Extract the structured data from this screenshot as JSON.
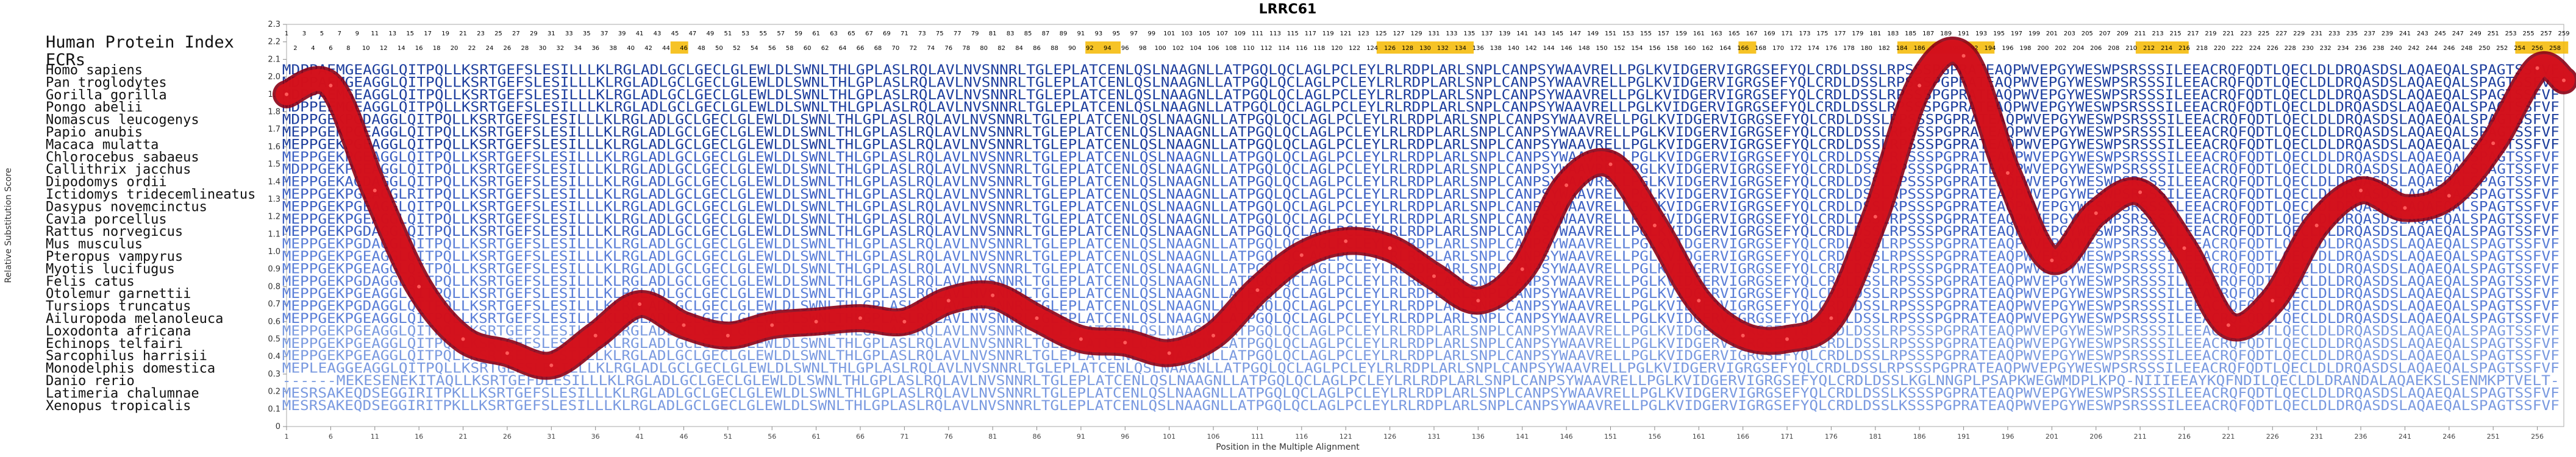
{
  "chart_data": {
    "type": "line",
    "title": "LRRC61",
    "xlabel": "Position in the Multiple Alignment",
    "ylabel": "Relative Substitution Score",
    "xlim": [
      1,
      259
    ],
    "ylim": [
      0,
      2.3
    ],
    "yticks": [
      "0",
      "0.1",
      "0.2",
      "0.3",
      "0.4",
      "0.5",
      "0.6",
      "0.7",
      "0.8",
      "0.9",
      "1.0",
      "1.1",
      "1.2",
      "1.3",
      "1.4",
      "1.5",
      "1.6",
      "1.7",
      "1.8",
      "1.9",
      "2.0",
      "2.1",
      "2.2",
      "2.3"
    ],
    "xticks": [
      1,
      6,
      11,
      16,
      21,
      26,
      31,
      36,
      41,
      46,
      51,
      56,
      61,
      66,
      71,
      76,
      81,
      86,
      91,
      96,
      101,
      106,
      111,
      116,
      121,
      126,
      131,
      136,
      141,
      146,
      151,
      156,
      161,
      166,
      171,
      176,
      181,
      186,
      191,
      196,
      201,
      206,
      211,
      216,
      221,
      226,
      231,
      236,
      241,
      246,
      251,
      256
    ],
    "row_labels": [
      "Human Protein Index",
      "ECRs"
    ],
    "ecr_highlights": [
      [
        45,
        46
      ],
      [
        92,
        95
      ],
      [
        125,
        135
      ],
      [
        166,
        167
      ],
      [
        184,
        194
      ],
      [
        211,
        216
      ],
      [
        254,
        259
      ]
    ],
    "species": [
      "Homo sapiens",
      "Pan troglodytes",
      "Gorilla gorilla",
      "Pongo abelii",
      "Nomascus leucogenys",
      "Papio anubis",
      "Macaca mulatta",
      "Chlorocebus sabaeus",
      "Callithrix jacchus",
      "Dipodomys ordii",
      "Ictidomys tridecemlineatus",
      "Dasypus novemcinctus",
      "Cavia porcellus",
      "Rattus norvegicus",
      "Mus musculus",
      "Pteropus vampyrus",
      "Myotis lucifugus",
      "Felis catus",
      "Otolemur garnettii",
      "Tursiops truncatus",
      "Ailuropoda melanoleuca",
      "Loxodonta africana",
      "Echinops telfairi",
      "Sarcophilus harrisii",
      "Monodelphis domestica",
      "Danio rerio",
      "Latimeria chalumnae",
      "Xenopus tropicalis"
    ],
    "sequences": [
      "MDPPAEMGEAGGLQITPQLLKSRTGEFSLESILLLKLRGLADLGCLGECLGLEWLDLSWNLTHLGPLASLRQLAVLNVSNNRLTGLEPLATCENLQSLNAAGNLLATPGQLQCLAGLPCLEYLRLRDPLARLSNPLCANPSYWAAVRELLPGLKVIDGERVIGRGSEFYQLCRDLDSSLRPSSSPGPRATEAQPWVEPGYWESWPSRSSSILEEACRQFQDTLQECLDLDRQASDSLAQAEQALSPAGTSSFVF",
      "MDPPAEMGEAGGLQITPQLLKSRTGEFSLESILLLKLRGLADLGCLGECLGLEWLDLSWNLTHLGPLASLRQLAVLNVSNNRLTGLEPLATCENLQSLNAAGNLLATPGQLQCLAGLPCLEYLRLRDPLARLSNPLCANPSYWAAVRELLPGLKVIDGERVIGRGSEFYQLCRDLDSSLRPSSSPGPRATEAQPWVEPGYWESWPSRSSSILEEACRQFQDTLQECLDLDRQASDSLAQAEQALSPAGTSSFVF",
      "MDPPAEMGEAGGLQITPQLLKSRTGEFSLESILLLKLRGLADLGCLGECLGLEWLDLSWNLTHLGPLASLRQLAVLNVSNNRLTGLEPLATCENLQSLNAAGNLLATPGQLQCLAGLPCLEYLRLRDPLARLSNPLCANPSYWAAVRELLPGLKVIDGERVIGRGSEFYQLCRDLDSSLRPSSSPGPRATEAQPWVEPGYWESWPSRSSSILEEACRQFQDTLQECLDLDRQASDSLAQAEQALSPAGTSSFVF",
      "MDPPEEMGEAGGLQITPQLLKSRTGEFSLESILLLKLRGLADLGCLGECLGLEWLDLSWNLTHLGPLASLRQLAVLNVSNNRLTGLEPLATCENLQSLNAAGNLLATPGQLQCLAGLPCLEYLRLRDPLARLSNPLCANPSYWAAVRELLPGLKVIDGERVIGRGSEFYQLCRDLDSSLRPSSSPGPRATEAQPWVEPGYWESWPSRSSSILEEACRQFQDTLQECLDLDRQASDSLAQAEQALSPAGTSSFVF",
      "MDPPGEKPGDAGGLQITPQLLKSRTGEFSLESILLLKLRGLADLGCLGECLGLEWLDLSWNLTHLGPLASLRQLAVLNVSNNRLTGLEPLATCENLQSLNAAGNLLATPGQLQCLAGLPCLEYLRLRDPLARLSNPLCANPSYWAAVRELLPGLKVIDGERVIGRGSEFYQLCRDLDSSLRPSSSPGPRATEAQPWVEPGYWESWPSRSSSILEEACRQFQDTLQECLDLDRQASDSLAQAEQALSPAGTSSFVF",
      "MEPPGEKPGEAGGLQITPQLLKSRTGEFSLESILLLKLRGLADLGCLGECLGLEWLDLSWNLTHLGPLASLRQLAVLNVSNNRLTGLEPLATCENLQSLNAAGNLLATPGQLQCLAGLPCLEYLRLRDPLARLSNPLCANPSYWAAVRELLPGLKVIDGERVIGRGSEFYQLCRDLDSSLRPSSSPGPRATEAQPWVEPGYWESWPSRSSSILEEACRQFQDTLQECLDLDRQASDSLAQAEQALSPAGTSSFVF",
      "MEPPGEKPGEAGGLQITPQLLKSRTGEFSLESILLLKLRGLADLGCLGECLGLEWLDLSWNLTHLGPLASLRQLAVLNVSNNRLTGLEPLATCENLQSLNAAGNLLATPGQLQCLAGLPCLEYLRLRDPLARLSNPLCANPSYWAAVRELLPGLKVIDGERVIGRGSEFYQLCRDLDSSLRPSSSPGPRATEAQPWVEPGYWESWPSRSSSILEEACRQFQDTLQECLDLDRQASDSLAQAEQALSPAGTSSFVF",
      "MEPPGEKPGEAGGLQITPQLLKSRTGEFSLESILLLKLRGLADLGCLGECLGLEWLDLSWNLTHLGPLASLRQLAVLNVSNNRLTGLEPLATCENLQSLNAAGNLLATPGQLQCLAGLPCLEYLRLRDPLARLSNPLCANPSYWAAVRELLPGLKVIDGERVIGRGSEFYQLCRDLDSSLRPSSSPGPRATEAQPWVEPGYWESWPSRSSSILEEACRQFQDTLQECLDLDRQASDSLAQAEQALSPAGTSSFVF",
      "MDPPGEKPGEAGGLQITPQLLKSRTGEFSLESILLLKLRGLADLGCLGECLGLEWLDLSWNLTHLGPLASLRQLAVLNVSNNRLTGLEPLATCENLQSLNAAGNLLATPGQLQCLAGLPCLEYLRLRDPLARLSNPLCANPSYWAAVRELLPGLKVIDGERVIGRGSEFYQLCRDLDSSLRPSSSPGPRATEAQPWVEPGYWESWPSRSSSILEEACRQFQDTLQECLDLDRQASDSLAQAEQALSPAGTSSFVF",
      "MEPPGEKAGDAGGLQITPQLLKSRTGEFSLESILLLKLRGLADLGCLGECLGLEWLDLSWNLTHLGPLASLRQLAVLNVSNNRLTGLEPLATCENLQSLNAAGNLLATPGQLQCLAGLPCLEYLRLRDPLARLSNPLCANPSYWAAVRELLPGLKVIDGERVIGRGSEFYQLCRDLDSSLRPSSSPGPRATEAQPWVEPGYWESWPSRSSSILEEACRQFQDTLQECLDLDRQASDSLAQAEQALSPAGTSSFVF",
      "MEPPGEKPGEAGGLRITPQLLKSRTGEFSLESILLLKLRGLADLGCLGECLGLEWLDLSWNLTHLGPLASLRQLAVLNVSNNRLTGLEPLATCENLQSLNAAGNLLATPGQLQCLAGLPCLEYLRLRDPLARLSNPLCANPSYWAAVRELLPGLKVIDGERVIGRGSEFYQLCRDLDSSLRPSSSPGPRATEAQPWVEPGYWESWPSRSSSILEEACRQFQDTLQECLDLDRQASDSLAQAEQALSPAGTSSFVF",
      "MEPPGEKPGEAGGLQITPQLLKSRTGEFSLESILLLKLRGLADLGCLGECLGLEWLDLSWNLTHLGPLASLRQLAVLNVSNNRLTGLEPLATCENLQSLNAAGNLLATPGQLQCLAGLPCLEYLRLRDPLARLSNPLCANPSYWAAVRELLPGLKVIDGERVIGRGSEFYQLCRDLDSSLRPSSSPGPRATEAQPWVEPGYWESWPSRSSSILEEACRQFQDTLQECLDLDRQASDSLAQAEQALSPAGTSSFVF",
      "MEPPGEKPGEAGGLQITPQLLKSRTGEFSLESILLLKLRGLADLGCLGECLGLEWLDLSWNLTHLGPLASLRQLAVLNVSNNRLTGLEPLATCENLQSLNAAGNLLATPGQLQCLAGLPCLEYLRLRDPLARLSNPLCANPSYWAAVRELLPGLKVIDGERVIGRGSEFYQLCRDLDSSLRPSSSPGPRATEAQPWVEPGYWESWPSRSSSILEEACRQFQDTLQECLDLDRQASDSLAQAEQALSPAGTSSFVF",
      "MEPPGEKPGDAGGLQITPQLLKSRTGEFSLESILLLKLRGLADLGCLGECLGLEWLDLSWNLTHLGPLASLRQLAVLNVSNNRLTGLEPLATCENLQSLNAAGNLLATPGQLQCLAGLPCLEYLRLRDPLARLSNPLCANPSYWAAVRELLPGLKVIDGERVIGRGSEFYQLCRDLDSSLRPSSSPGPRATEAQPWVEPGYWESWPSRSSSILEEACRQFQDTLQECLDLDRQASDSLAQAEQALSPAGTSSFVF",
      "MEPPGEKPGDAGGLQITPQLLKSRTGEFSLESILLLKLRGLADLGCLGECLGLEWLDLSWNLTHLGPLASLRQLAVLNVSNNRLTGLEPLATCENLQSLNAAGNLLATPGQLQCLAGLPCLEYLRLRDPLARLSNPLCANPSYWAAVRELLPGLKVIDGERVIGRGSEFYQLCRDLDSSLRPSSSPGPRATEAQPWVEPGYWESWPSRSSSILEEACRQFQDTLQECLDLDRQASDSLAQAEQALSPAGTSSFVF",
      "MEPPGEKPGEAGGLQITPQLLKSRTGEFSLESILLLKLRGLADLGCLGECLGLEWLDLSWNLTHLGPLASLRQLAVLNVSNNRLTGLEPLATCENLQSLNAAGNLLATPGQLQCLAGLPCLEYLRLRDPLARLSNPLCANPSYWAAVRELLPGLKVIDGERVIGRGSEFYQLCRDLDSSLRPSSSPGPRATEAQPWVEPGYWESWPSRSSSILEEACRQFQDTLQECLDLDRQASDSLAQAEQALSPAGTSSFVF",
      "MEPPGEKPGEAGGLQITPQLLKSRTGEFSLESILLLKLRGLADLGCLGECLGLEWLDLSWNLTHLGPLASLRQLAVLNVSNNRLTGLEPLATCENLQSLNAAGNLLATPGQLQCLAGLPCLEYLRLRDPLARLSNPLCANPSYWAAVRELLPGLKVIDGERVIGRGSEFYQLCRDLDSSLRPSSSPGPRATEAQPWVEPGYWESWPSRSSSILEEACRQFQDTLQECLDLDRQASDSLAQAEQALSPAGTSSFVF",
      "MEPPGEKPGDAGGLQITPQLLKSRTGEFSLESILLLKLRGLADLGCLGECLGLEWLDLSWNLTHLGPLASLRQLAVLNVSNNRLTGLEPLATCENLQSLNAAGNLLATPGQLQCLAGLPCLEYLRLRDPLARLSNPLCANPSYWAAVRELLPGLKVIDGERVIGRGSEFYQLCRDLDSSLRPSSSPGPRATEAQPWVEPGYWESWPSRSSSILEEACRQFQDTLQECLDLDRQASDSLAQAEQALSPAGTSSFVF",
      "MEPPGEKPGEAGGLQITPQLLKSRTGEFSLESILLLKLRGLADLGCLGECLGLEWLDLSWNLTHLGPLASLRQLAVLNVSNNRLTGLEPLATCENLQSLNAAGNLLATPGQLQCLAGLPCLEYLRLRDPLARLSNPLCANPSYWAAVRELLPGLKVIDGERVIGRGSEFYQLCRDLDSSLRPSSSPGPRATEAQPWVEPGYWESWPSRSSSILEEACRQFQDTLQECLDLDRQASDSLAQAEQALSPAGTSSFVF",
      "MEPPGEKPGDAGGLQITPQLLKSRTGEFSLESILLLKLRGLADLGCLGECLGLEWLDLSWNLTHLGPLASLRQLAVLNVSNNRLTGLEPLATCENLQSLNAAGNLLATPGQLQCLAGLPCLEYLRLRDPLARLSNPLCANPSYWAAVRELLPGLKVIDGERVIGRGSEFYQLCRDLDSSLRPSSSPGPRATEAQPWVEPGYWESWPSRSSSILEEACRQFQDTLQECLDLDRQASDSLAQAEQALSPAGTSSFVF",
      "MEPPGEKPGEAGGLQITPQLLKSRTGEFSLESILLLKLRGLADLGCLGECLGLEWLDLSWNLTHLGPLASLRQLAVLNVSNNRLTGLEPLATCENLQSLNAAGNLLATPGQLQCLAGLPCLEYLRLRDPLARLSNPLCANPSYWAAVRELLPGLKVIDGERVIGRGSEFYQLCRDLDSSLRPSSSPGPRATEAQPWVEPGYWESWPSRSSSILEEACRQFQDTLQECLDLDRQASDSLAQAEQALSPAGTSSFVF",
      "MEPPGEKPGEAGGLQITPQLLKSRTGEFSLESILLLKLRGLADLGCLGECLGLEWLDLSWNLTHLGPLASLRQLAVLNVSNNRLTGLEPLATCENLQSLNAAGNLLATPGQLQCLAGLPCLEYLRLRDPLARLSNPLCANPSYWAAVRELLPGLKVIDGERVIGRGSEFYQLCRDLDSSLRPSSSPGPRATEAQPWVEPGYWESWPSRSSSILEEACRQFQDTLQECLDLDRQASDSLAQAEQALSPAGTSSFVF",
      "MEPPGEKPGEAGGLQITPQLLKSRTGEFSLESILLLKLRGLADLGCLGECLGLEWLDLSWNLTHLGPLASLRQLAVLNVSNNRLTGLEPLATCENLQSLNAAGNLLATPGQLQCLAGLPCLEYLRLRDPLARLSNPLCANPSYWAAVRELLPGLKVIDGERVIGRGSEFYQLCRDLDSSLRPSSSPGPRATEAQPWVEPGYWESWPSRSSSILEEACRQFQDTLQECLDLDRQASDSLAQAEQALSPAGTSSFVF",
      "MEPPGEKPGEAGGLQITPQLLKSRTGEFSLESILLLKLRGLADLGCLGECLGLEWLDLSWNLTHLGPLASLRQLAVLNVSNNRLTGLEPLATCENLQSLNAAGNLLATPGQLQCLAGLPCLEYLRLRDPLARLSNPLCANPSYWAAVRELLPGLKVIDGERVIGRGSEFYQLCRDLDSSLRPSSSPGPRATEAQPWVEPGYWESWPSRSSSILEEACRQFQDTLQECLDLDRQASDSLAQAEQALSPAGTSSFVF",
      "MEPLEAGGEAGGLQITPQLLKSRTGEFSLESILLLKLRGLADLGCLGECLGLEWLDLSWNLTHLGPLASLRQLAVLNVSNNRLTGLEPLATCENLQSLNAAGNLLATPGQLQCLAGLPCLEYLRLRDPLARLSNPLCANPSYWAAVRELLPGLKVIDGERVIGRGSEFYQLCRDLDSSLRPSSSPGPRATEAQPWVEPGYWESWPSRSSSILEEACRQFQDTLQECLDLDRQASDSLAQAEQALSPAGTSSFVF",
      "------MEKESENEKITAQLLKSRTGEFDLESILLLKLRGLADLGCLGECLGLEWLDLSWNLTHLGPLASLRQLAVLNVSNNRLTGLEPLATCENLQSLNAAGNLLATPGQLQCLAGLPCLEYLRLRDPLARLSNPLCANPSYWAAVRELLPGLKVIDGERVIGRGSEFYQLCRDLDSSLKGLNNGPLPSAPKWEGWMDPLKPQ-NIIIEEAYKQFNDILQECLDLDRANDALAQAEKSLSENMKPTVELT-",
      "MESRSAKEQDSEGGIRITPKLLKSRTGEFSLESILLLKLRGLADLGCLGECLGLEWLDLSWNLTHLGPLASLRQLAVLNVSNNRLTGLEPLATCENLQSLNAAGNLLATPGQLQCLAGLPCLEYLRLRDPLARLSNPLCANPSYWAAVRELLPGLKVIDGERVIGRGSEFYQLCRDLDSSLKSSSPGPRATEAQPWVEPGYWESWPSRSSSILEEACRQFQDTLQECLDLDRQASDSLAQAEQALSPAGTSSFVF",
      "MESRSAKEQDSEGGIRITPKLLKSRTGEFSLESILLLKLRGLADLGCLGECLGLEWLDLSWNLTHLGPLASLRQLAVLNVSNNRLTGLEPLATCENLQSLNAAGNLLATPGQLQCLAGLPCLEYLRLRDPLARLSNPLCANPSYWAAVRELLPGLKVIDGERVIGRGSEFYQLCRDLDSSLKSSSPGPRATEAQPWVEPGYWESWPSRSSSILEEACRQFQDTLQECLDLDRQASDSLAQAEQALSPAGTSSFVF"
    ],
    "series": [
      {
        "x": [
          1,
          6,
          11,
          16,
          21,
          26,
          31,
          36,
          41,
          46,
          51,
          56,
          61,
          66,
          71,
          76,
          81,
          86,
          91,
          96,
          101,
          106,
          111,
          116,
          121,
          126,
          131,
          136,
          141,
          146,
          151,
          156,
          161,
          166,
          171,
          176,
          181,
          186,
          191,
          196,
          201,
          206,
          211,
          216,
          221,
          226,
          231,
          236,
          241,
          246,
          251,
          256,
          259
        ],
        "values": [
          1.9,
          1.95,
          1.35,
          0.8,
          0.5,
          0.42,
          0.35,
          0.52,
          0.7,
          0.58,
          0.52,
          0.58,
          0.6,
          0.62,
          0.6,
          0.72,
          0.75,
          0.62,
          0.5,
          0.48,
          0.42,
          0.52,
          0.78,
          0.98,
          1.06,
          1.02,
          0.86,
          0.72,
          0.9,
          1.38,
          1.5,
          1.15,
          0.72,
          0.52,
          0.5,
          0.62,
          1.2,
          1.95,
          2.12,
          1.45,
          0.95,
          1.22,
          1.34,
          1.02,
          0.58,
          0.72,
          1.15,
          1.35,
          1.25,
          1.32,
          1.62,
          2.05,
          1.98
        ]
      }
    ]
  }
}
